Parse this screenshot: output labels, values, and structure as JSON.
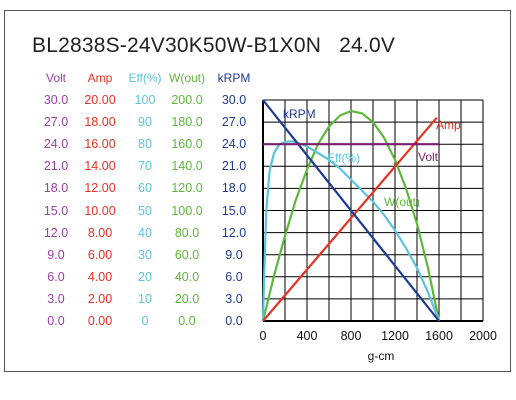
{
  "title": "BL2838S-24V30K50W-B1X0N   24.0V",
  "chart_data": {
    "type": "line",
    "xlabel": "g-cm",
    "xlim": [
      0,
      2000
    ],
    "x_ticks": [
      "0",
      "400",
      "800",
      "1200",
      "1600",
      "2000"
    ],
    "grid": true,
    "columns": [
      {
        "key": "volt",
        "header": "Volt",
        "color": "#9b3fa8",
        "ticks": [
          "30.0",
          "27.0",
          "24.0",
          "21.0",
          "18.0",
          "15.0",
          "12.0",
          "9.0",
          "6.0",
          "3.0",
          "0.0"
        ]
      },
      {
        "key": "amp",
        "header": "Amp",
        "color": "#e53224",
        "ticks": [
          "20.00",
          "18.00",
          "16.00",
          "14.00",
          "12.00",
          "10.00",
          "8.00",
          "6.00",
          "4.00",
          "2.00",
          "0.00"
        ]
      },
      {
        "key": "eff",
        "header": "Eff(%)",
        "color": "#5bc4dc",
        "ticks": [
          "100",
          "90",
          "80",
          "70",
          "60",
          "50",
          "40",
          "30",
          "20",
          "10",
          "0"
        ]
      },
      {
        "key": "wout",
        "header": "W(out)",
        "color": "#5db83a",
        "ticks": [
          "200.0",
          "180.0",
          "160.0",
          "140.0",
          "120.0",
          "100.0",
          "80.0",
          "60.0",
          "40.0",
          "20.0",
          "0.0"
        ]
      },
      {
        "key": "krpm",
        "header": "kRPM",
        "color": "#1f3a93",
        "ticks": [
          "30.0",
          "27.0",
          "24.0",
          "21.0",
          "18.0",
          "15.0",
          "12.0",
          "9.0",
          "6.0",
          "3.0",
          "0.0"
        ]
      }
    ],
    "series": [
      {
        "name": "kRPM",
        "axis": "krpm",
        "color": "#1f3a93",
        "x": [
          0,
          1600
        ],
        "y": [
          30.0,
          0.0
        ]
      },
      {
        "name": "Amp",
        "axis": "amp",
        "color": "#e53224",
        "x": [
          0,
          1580
        ],
        "y": [
          0.0,
          18.4
        ]
      },
      {
        "name": "Volt",
        "axis": "volt",
        "color": "#7a1f6e",
        "x": [
          0,
          1600
        ],
        "y": [
          24.0,
          24.0
        ]
      },
      {
        "name": "Eff(%)",
        "axis": "eff",
        "color": "#5bc4dc",
        "x": [
          0,
          10,
          30,
          60,
          100,
          150,
          200,
          250,
          300,
          400,
          500,
          600,
          700,
          800,
          900,
          1000,
          1100,
          1200,
          1300,
          1400,
          1500,
          1600
        ],
        "y": [
          0,
          20,
          50,
          68,
          76,
          80,
          81,
          81.3,
          81,
          79,
          76,
          73,
          69,
          64,
          59,
          54,
          48,
          41,
          33,
          24,
          13,
          0
        ]
      },
      {
        "name": "W(out)",
        "axis": "wout",
        "color": "#5db83a",
        "x": [
          0,
          100,
          200,
          300,
          400,
          500,
          600,
          700,
          800,
          900,
          1000,
          1100,
          1200,
          1300,
          1400,
          1500,
          1600
        ],
        "y": [
          0,
          41,
          77,
          110,
          137,
          160,
          176,
          186,
          190,
          188,
          180,
          166,
          146,
          120,
          88,
          48,
          0
        ]
      }
    ]
  }
}
